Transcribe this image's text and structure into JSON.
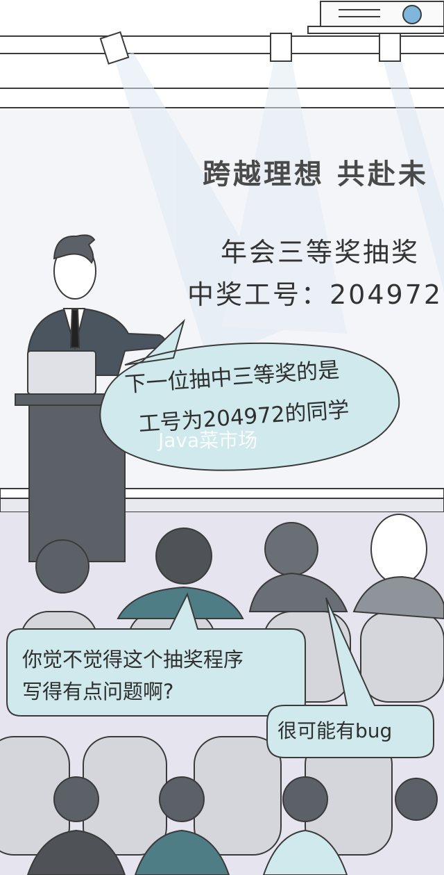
{
  "screen": {
    "title": "跨越理想  共赴未",
    "subtitle": "年会三等奖抽奖",
    "winner_line": "中奖工号：204972"
  },
  "host_speech": {
    "line1": "下一位抽中三等奖的是",
    "line2": "工号为204972的同学"
  },
  "watermark": "Java菜市场",
  "audience_speech": {
    "line1": "你觉不觉得这个抽奖程序",
    "line2": "写得有点问题啊?"
  },
  "reply_speech": "很可能有bug",
  "colors": {
    "bubble": "#cfe9ec",
    "outline": "#3a3a3a",
    "screen": "#f4f5f9",
    "floor": "#e6e4ef",
    "suit": "#4b5560",
    "seat": "#d4d6db"
  }
}
